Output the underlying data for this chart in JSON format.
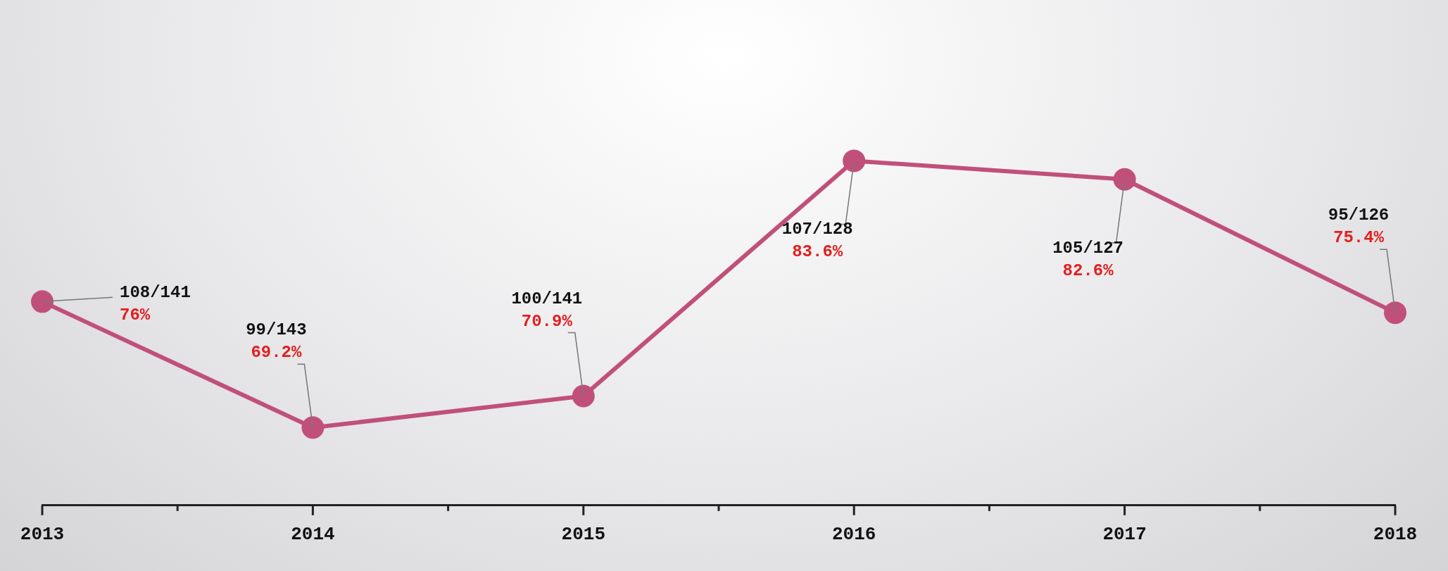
{
  "chart_data": {
    "type": "line",
    "categories": [
      "2013",
      "2014",
      "2015",
      "2016",
      "2017",
      "2018"
    ],
    "series": [
      {
        "color": "#c0507a",
        "values": [
          76,
          69.2,
          70.9,
          83.6,
          82.6,
          75.4
        ],
        "value_labels": [
          "108/141\n76%",
          "99/143\n69.2%",
          "100/141\n70.9%",
          "107/128\n83.6%",
          "105/127\n82.6%",
          "95/126\n75.4%"
        ]
      }
    ],
    "marker": "circle",
    "line_style": "solid",
    "grid": false,
    "legend": false,
    "tick_labels": "x"
  }
}
